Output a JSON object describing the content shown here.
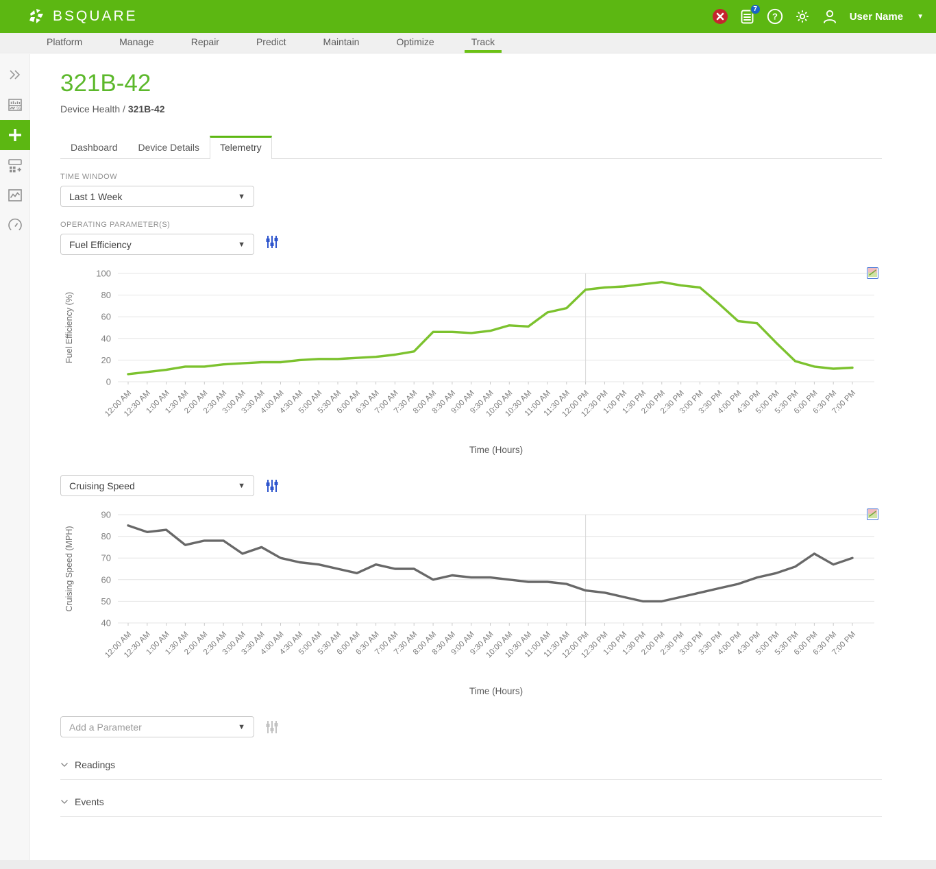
{
  "header": {
    "brand": "BSQUARE",
    "notification_count": "7",
    "user_name": "User Name",
    "colors": {
      "header_green": "#5cb712",
      "alert_red": "#c4262e",
      "badge_blue": "#1b63c9"
    },
    "icons": [
      "close-icon",
      "notifications-icon",
      "help-icon",
      "settings-icon",
      "user-icon",
      "chevron-down-icon"
    ]
  },
  "nav": {
    "items": [
      "Platform",
      "Manage",
      "Repair",
      "Predict",
      "Maintain",
      "Optimize",
      "Track"
    ],
    "active": "Track",
    "active_underline_color": "#6cc116"
  },
  "sidebar": {
    "icons": [
      "expand-icon",
      "dashboard-report-icon",
      "add-icon",
      "add-widget-icon",
      "line-chart-icon",
      "gauge-icon"
    ],
    "active_icon": "add-icon",
    "active_color": "#5cb712"
  },
  "page": {
    "title": "321B-42",
    "title_color": "#5cb82b",
    "breadcrumb_section": "Device Health",
    "breadcrumb_separator": "/",
    "breadcrumb_current": "321B-42"
  },
  "tabs": {
    "items": [
      "Dashboard",
      "Device Details",
      "Telemetry"
    ],
    "active": "Telemetry"
  },
  "controls": {
    "time_window_label": "TIME WINDOW",
    "time_window_value": "Last 1 Week",
    "parameter_label": "OPERATING PARAMETER(S)",
    "parameter1_value": "Fuel Efficiency",
    "parameter2_value": "Cruising Speed",
    "add_parameter_placeholder": "Add a Parameter",
    "filter_icon": "sliders-icon",
    "filter_icon_color": "#2e55cd",
    "filter_icon_disabled_color": "#c3c3c3"
  },
  "sections": {
    "readings_label": "Readings",
    "events_label": "Events"
  },
  "chart_data": [
    {
      "type": "line",
      "title": "",
      "ylabel": "Fuel Efficiency (%)",
      "xlabel": "Time (Hours)",
      "ylim": [
        0,
        100
      ],
      "yticks": [
        0,
        20,
        40,
        60,
        80,
        100
      ],
      "grid": "horizontal + vertical line at 12:00 PM",
      "legend_position": "none",
      "line_color": "#7cc22e",
      "x": [
        "12:00 AM",
        "12:30 AM",
        "1:00 AM",
        "1:30 AM",
        "2:00 AM",
        "2:30 AM",
        "3:00 AM",
        "3:30 AM",
        "4:00 AM",
        "4:30 AM",
        "5:00 AM",
        "5:30 AM",
        "6:00 AM",
        "6:30 AM",
        "7:00 AM",
        "7:30 AM",
        "8:00 AM",
        "8:30 AM",
        "9:00 AM",
        "9:30 AM",
        "10:00 AM",
        "10:30 AM",
        "11:00 AM",
        "11:30 AM",
        "12:00 PM",
        "12:30 PM",
        "1:00 PM",
        "1:30 PM",
        "2:00 PM",
        "2:30 PM",
        "3:00 PM",
        "3:30 PM",
        "4:00 PM",
        "4:30 PM",
        "5:00 PM",
        "5:30 PM",
        "6:00 PM",
        "6:30 PM",
        "7:00 PM"
      ],
      "values": [
        7,
        9,
        11,
        14,
        14,
        16,
        17,
        18,
        18,
        20,
        21,
        21,
        22,
        23,
        25,
        28,
        46,
        46,
        45,
        47,
        52,
        51,
        64,
        68,
        85,
        87,
        88,
        90,
        92,
        89,
        87,
        72,
        56,
        54,
        36,
        19,
        14,
        12,
        13
      ]
    },
    {
      "type": "line",
      "title": "",
      "ylabel": "Cruising Speed (MPH)",
      "xlabel": "Time (Hours)",
      "ylim": [
        40,
        90
      ],
      "yticks": [
        40,
        50,
        60,
        70,
        80,
        90
      ],
      "grid": "horizontal + vertical line at 12:00 PM",
      "legend_position": "none",
      "line_color": "#686868",
      "x": [
        "12:00 AM",
        "12:30 AM",
        "1:00 AM",
        "1:30 AM",
        "2:00 AM",
        "2:30 AM",
        "3:00 AM",
        "3:30 AM",
        "4:00 AM",
        "4:30 AM",
        "5:00 AM",
        "5:30 AM",
        "6:00 AM",
        "6:30 AM",
        "7:00 AM",
        "7:30 AM",
        "8:00 AM",
        "8:30 AM",
        "9:00 AM",
        "9:30 AM",
        "10:00 AM",
        "10:30 AM",
        "11:00 AM",
        "11:30 AM",
        "12:00 PM",
        "12:30 PM",
        "1:00 PM",
        "1:30 PM",
        "2:00 PM",
        "2:30 PM",
        "3:00 PM",
        "3:30 PM",
        "4:00 PM",
        "4:30 PM",
        "5:00 PM",
        "5:30 PM",
        "6:00 PM",
        "6:30 PM",
        "7:00 PM"
      ],
      "values": [
        85,
        82,
        83,
        76,
        78,
        78,
        72,
        75,
        70,
        68,
        67,
        65,
        63,
        67,
        65,
        65,
        60,
        62,
        61,
        61,
        60,
        59,
        59,
        58,
        55,
        54,
        52,
        50,
        50,
        52,
        54,
        56,
        58,
        61,
        63,
        66,
        72,
        67,
        70
      ]
    }
  ]
}
